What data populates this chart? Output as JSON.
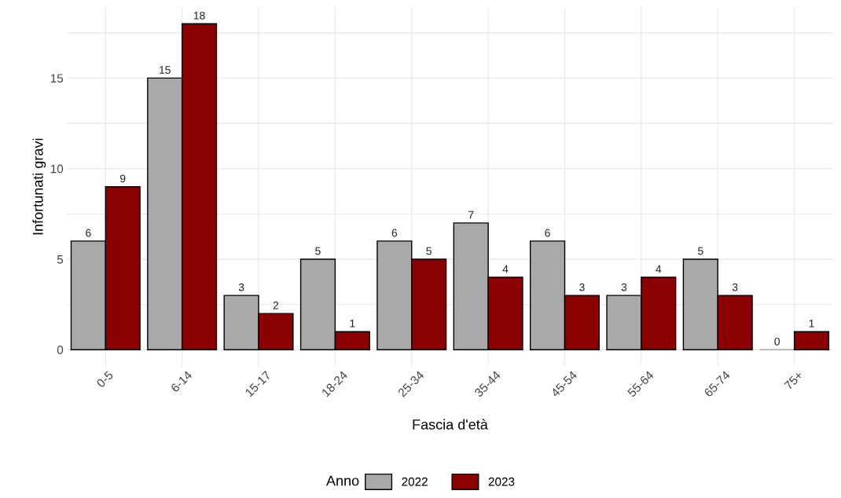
{
  "chart_data": {
    "type": "bar",
    "xlabel": "Fascia d'età",
    "ylabel": "Infortunati gravi",
    "legend_title": "Anno",
    "categories": [
      "0-5",
      "6-14",
      "15-17",
      "18-24",
      "25-34",
      "35-44",
      "45-54",
      "55-64",
      "65-74",
      "75+"
    ],
    "series": [
      {
        "name": "2022",
        "color": "#a9a9a9",
        "values": [
          6,
          15,
          3,
          5,
          6,
          7,
          6,
          3,
          5,
          0
        ]
      },
      {
        "name": "2023",
        "color": "#8b0000",
        "values": [
          9,
          18,
          2,
          1,
          5,
          4,
          3,
          4,
          3,
          1
        ]
      }
    ],
    "ylim": [
      -0.9,
      18.9
    ],
    "yticks": [
      0,
      {
        "value": 2.5,
        "label": null
      },
      5,
      {
        "value": 7.5,
        "label": null
      },
      10,
      {
        "value": 12.5,
        "label": null
      },
      15,
      {
        "value": 17.5,
        "label": null
      }
    ],
    "grid": true,
    "legend": "bottom",
    "data_labels": true
  }
}
